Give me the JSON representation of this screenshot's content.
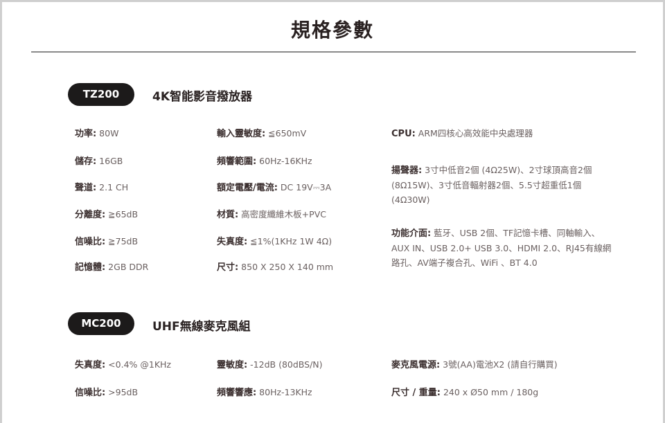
{
  "title": "規格參數",
  "tz200": {
    "badge": "TZ200",
    "heading": "4K智能影音撥放器",
    "items": [
      {
        "label": "功率:",
        "value": " 80W"
      },
      {
        "label": "儲存:",
        "value": " 16GB"
      },
      {
        "label": "聲道:",
        "value": " 2.1 CH"
      },
      {
        "label": "分離度:",
        "value": " ≧65dB"
      },
      {
        "label": "信噪比:",
        "value": " ≧75dB"
      },
      {
        "label": "記憶體:",
        "value": " 2GB DDR"
      },
      {
        "label": "輸入靈敏度:",
        "value": " ≦650mV"
      },
      {
        "label": "頻響範圍:",
        "value": " 60Hz-16KHz"
      },
      {
        "label": "額定電壓/電流:",
        "value": " DC 19V⎓3A"
      },
      {
        "label": "材質:",
        "value": " 高密度纖維木板+PVC"
      },
      {
        "label": "失真度:",
        "value": " ≦1%(1KHz 1W 4Ω)"
      },
      {
        "label": "尺寸:",
        "value": " 850 X 250 X 140 mm"
      },
      {
        "label": "CPU:",
        "value": " ARM四核心高效能中央處理器"
      },
      {
        "label": "揚聲器:",
        "value": " 3寸中低音2個 (4Ω25W)、2寸球頂高音2個(8Ω15W)、3寸低音輻射器2個、5.5寸超重低1個(4Ω30W)"
      },
      {
        "label": "功能介面:",
        "value": " 藍牙、USB 2個、TF記憶卡槽、同軸輸入、AUX IN、USB 2.0+ USB 3.0、HDMI 2.0、RJ45有線網路孔、AV端子複合孔、WiFi 、BT 4.0"
      }
    ]
  },
  "mc200": {
    "badge": "MC200",
    "heading": "UHF無線麥克風組",
    "items": [
      {
        "label": "失真度:",
        "value": " <0.4% @1KHz"
      },
      {
        "label": "信噪比:",
        "value": " >95dB"
      },
      {
        "label": "靈敏度:",
        "value": " -12dB (80dBS/N)"
      },
      {
        "label": "頻響響應:",
        "value": " 80Hz-13KHz"
      },
      {
        "label": "麥克風電源:",
        "value": " 3號(AA)電池X2 (請自行購買)"
      },
      {
        "label": "尺寸 / 重量:",
        "value": " 240 x Ø50 mm / 180g"
      }
    ]
  }
}
